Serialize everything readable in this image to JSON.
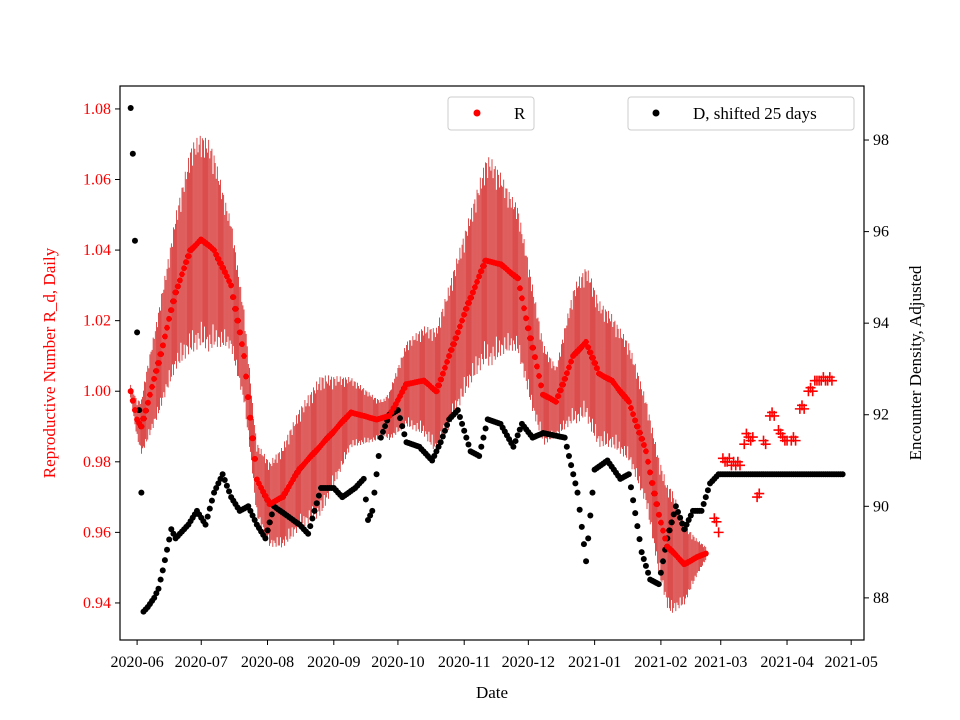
{
  "chart_data": {
    "type": "scatter",
    "xlabel": "Date",
    "ylabel_left": "Reproductive Number R_d, Daily",
    "ylabel_right": "Encounter Density, Adjusted",
    "x_ticks": [
      "2020-06",
      "2020-07",
      "2020-08",
      "2020-09",
      "2020-10",
      "2020-11",
      "2020-12",
      "2021-01",
      "2021-02",
      "2021-03",
      "2021-04",
      "2021-05"
    ],
    "x_range_days": [
      -8,
      340
    ],
    "x_tick_days": [
      0,
      30,
      61,
      92,
      122,
      153,
      183,
      214,
      245,
      273,
      304,
      334
    ],
    "ylim_left": [
      0.9295,
      1.0865
    ],
    "ylim_right": [
      87.08,
      99.18
    ],
    "yticks_left": [
      0.94,
      0.96,
      0.98,
      1.0,
      1.02,
      1.04,
      1.06,
      1.08
    ],
    "yticks_left_labels": [
      "0.94",
      "0.96",
      "0.98",
      "1.00",
      "1.02",
      "1.04",
      "1.06",
      "1.08"
    ],
    "yticks_right": [
      88,
      90,
      92,
      94,
      96,
      98
    ],
    "yticks_right_labels": [
      "88",
      "90",
      "92",
      "94",
      "96",
      "98"
    ],
    "colors": {
      "R": "#ff0000",
      "D": "#000000",
      "errorbar": "#cc0000"
    },
    "legend_R": {
      "label": "R",
      "position": "top-center"
    },
    "legend_D": {
      "label": "D, shifted 25 days",
      "position": "top-right"
    },
    "series_R_knots": [
      [
        -3,
        1.0
      ],
      [
        0,
        0.992
      ],
      [
        2,
        0.99
      ],
      [
        10,
        1.008
      ],
      [
        18,
        1.028
      ],
      [
        25,
        1.04
      ],
      [
        30,
        1.043
      ],
      [
        36,
        1.04
      ],
      [
        44,
        1.03
      ],
      [
        50,
        1.01
      ],
      [
        56,
        0.975
      ],
      [
        62,
        0.968
      ],
      [
        68,
        0.97
      ],
      [
        76,
        0.978
      ],
      [
        88,
        0.986
      ],
      [
        100,
        0.994
      ],
      [
        112,
        0.992
      ],
      [
        118,
        0.993
      ],
      [
        126,
        1.002
      ],
      [
        134,
        1.003
      ],
      [
        140,
        1.0
      ],
      [
        146,
        1.01
      ],
      [
        155,
        1.025
      ],
      [
        163,
        1.037
      ],
      [
        170,
        1.036
      ],
      [
        178,
        1.032
      ],
      [
        184,
        1.015
      ],
      [
        190,
        0.999
      ],
      [
        196,
        0.997
      ],
      [
        204,
        1.01
      ],
      [
        210,
        1.014
      ],
      [
        216,
        1.005
      ],
      [
        222,
        1.003
      ],
      [
        230,
        0.997
      ],
      [
        238,
        0.983
      ],
      [
        244,
        0.965
      ],
      [
        248,
        0.956
      ],
      [
        256,
        0.951
      ],
      [
        262,
        0.953
      ],
      [
        266,
        0.954
      ]
    ],
    "series_R_halfwidth_knots": [
      [
        -3,
        0.002
      ],
      [
        4,
        0.01
      ],
      [
        14,
        0.018
      ],
      [
        26,
        0.03
      ],
      [
        34,
        0.03
      ],
      [
        42,
        0.02
      ],
      [
        54,
        0.01
      ],
      [
        62,
        0.012
      ],
      [
        72,
        0.016
      ],
      [
        86,
        0.02
      ],
      [
        100,
        0.01
      ],
      [
        115,
        0.005
      ],
      [
        126,
        0.012
      ],
      [
        140,
        0.018
      ],
      [
        155,
        0.024
      ],
      [
        165,
        0.03
      ],
      [
        175,
        0.022
      ],
      [
        185,
        0.018
      ],
      [
        196,
        0.01
      ],
      [
        205,
        0.02
      ],
      [
        212,
        0.022
      ],
      [
        225,
        0.018
      ],
      [
        238,
        0.015
      ],
      [
        250,
        0.018
      ],
      [
        262,
        0.005
      ],
      [
        266,
        0.002
      ]
    ],
    "series_R_extra_plus": [
      [
        270,
        0.964
      ],
      [
        271,
        0.963
      ],
      [
        272,
        0.96
      ],
      [
        274,
        0.981
      ],
      [
        275,
        0.98
      ],
      [
        276,
        0.98
      ],
      [
        277,
        0.981
      ],
      [
        278,
        0.979
      ],
      [
        279,
        0.98
      ],
      [
        280,
        0.979
      ],
      [
        281,
        0.98
      ],
      [
        282,
        0.979
      ],
      [
        284,
        0.985
      ],
      [
        285,
        0.988
      ],
      [
        286,
        0.987
      ],
      [
        287,
        0.986
      ],
      [
        288,
        0.987
      ],
      [
        290,
        0.97
      ],
      [
        291,
        0.971
      ],
      [
        293,
        0.986
      ],
      [
        294,
        0.985
      ],
      [
        296,
        0.993
      ],
      [
        297,
        0.994
      ],
      [
        298,
        0.993
      ],
      [
        300,
        0.989
      ],
      [
        301,
        0.988
      ],
      [
        302,
        0.987
      ],
      [
        303,
        0.986
      ],
      [
        304,
        0.986
      ],
      [
        306,
        0.986
      ],
      [
        307,
        0.987
      ],
      [
        308,
        0.986
      ],
      [
        310,
        0.995
      ],
      [
        311,
        0.996
      ],
      [
        312,
        0.995
      ],
      [
        314,
        1.0
      ],
      [
        315,
        1.001
      ],
      [
        316,
        1.0
      ],
      [
        317,
        1.003
      ],
      [
        318,
        1.003
      ],
      [
        319,
        1.003
      ],
      [
        320,
        1.003
      ],
      [
        321,
        1.004
      ],
      [
        322,
        1.003
      ],
      [
        323,
        1.003
      ],
      [
        324,
        1.004
      ],
      [
        325,
        1.003
      ]
    ],
    "series_D_knots": [
      [
        -3,
        98.7
      ],
      [
        -2,
        97.7
      ],
      [
        -1,
        95.8
      ],
      [
        0,
        93.8
      ],
      [
        1,
        92.1
      ],
      [
        2,
        90.3
      ],
      [
        3,
        87.7
      ],
      [
        5,
        87.8
      ],
      [
        8,
        88.0
      ],
      [
        10,
        88.2
      ],
      [
        12,
        88.6
      ],
      [
        16,
        89.5
      ],
      [
        18,
        89.3
      ],
      [
        24,
        89.6
      ],
      [
        28,
        89.9
      ],
      [
        32,
        89.6
      ],
      [
        36,
        90.3
      ],
      [
        40,
        90.7
      ],
      [
        44,
        90.2
      ],
      [
        48,
        89.9
      ],
      [
        52,
        90.0
      ],
      [
        56,
        89.6
      ],
      [
        60,
        89.3
      ],
      [
        64,
        90.0
      ],
      [
        70,
        89.8
      ],
      [
        76,
        89.6
      ],
      [
        80,
        89.4
      ],
      [
        86,
        90.4
      ],
      [
        92,
        90.4
      ],
      [
        96,
        90.2
      ],
      [
        102,
        90.4
      ],
      [
        106,
        90.6
      ],
      [
        108,
        89.7
      ],
      [
        110,
        89.9
      ],
      [
        114,
        91.5
      ],
      [
        118,
        92.0
      ],
      [
        122,
        92.1
      ],
      [
        126,
        91.4
      ],
      [
        132,
        91.3
      ],
      [
        138,
        91.0
      ],
      [
        142,
        91.4
      ],
      [
        146,
        91.9
      ],
      [
        150,
        92.1
      ],
      [
        156,
        91.2
      ],
      [
        160,
        91.1
      ],
      [
        164,
        91.9
      ],
      [
        170,
        91.8
      ],
      [
        176,
        91.3
      ],
      [
        180,
        91.8
      ],
      [
        185,
        91.5
      ],
      [
        190,
        91.6
      ],
      [
        200,
        91.5
      ],
      [
        206,
        90.3
      ],
      [
        210,
        88.8
      ],
      [
        214,
        90.8
      ],
      [
        220,
        91.0
      ],
      [
        226,
        90.6
      ],
      [
        230,
        90.7
      ],
      [
        236,
        89.0
      ],
      [
        240,
        88.4
      ],
      [
        244,
        88.3
      ],
      [
        248,
        89.3
      ],
      [
        252,
        90.0
      ],
      [
        256,
        89.5
      ],
      [
        260,
        89.9
      ],
      [
        264,
        89.9
      ],
      [
        268,
        90.5
      ],
      [
        272,
        90.7
      ],
      [
        330,
        90.7
      ]
    ]
  }
}
